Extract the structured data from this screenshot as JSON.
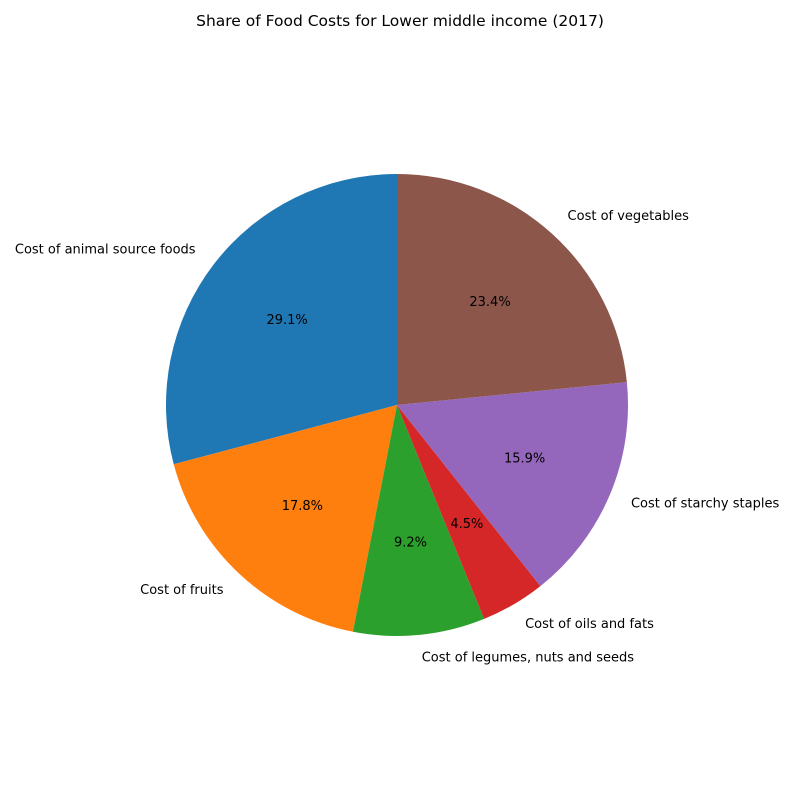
{
  "chart_data": {
    "type": "pie",
    "title": "Share of Food Costs for Lower middle income (2017)",
    "start_angle_deg": 90,
    "direction": "counterclockwise",
    "slices": [
      {
        "label": "Cost of animal source foods",
        "value": 29.1,
        "pct_label": "29.1%",
        "color": "#1f77b4"
      },
      {
        "label": "Cost of fruits",
        "value": 17.8,
        "pct_label": "17.8%",
        "color": "#ff7f0e"
      },
      {
        "label": "Cost of legumes, nuts and seeds",
        "value": 9.2,
        "pct_label": "9.2%",
        "color": "#2ca02c"
      },
      {
        "label": "Cost of oils and fats",
        "value": 4.5,
        "pct_label": "4.5%",
        "color": "#d62728"
      },
      {
        "label": "Cost of starchy staples",
        "value": 15.9,
        "pct_label": "15.9%",
        "color": "#9467bd"
      },
      {
        "label": "Cost of vegetables",
        "value": 23.4,
        "pct_label": "23.4%",
        "color": "#8c564b"
      }
    ]
  }
}
